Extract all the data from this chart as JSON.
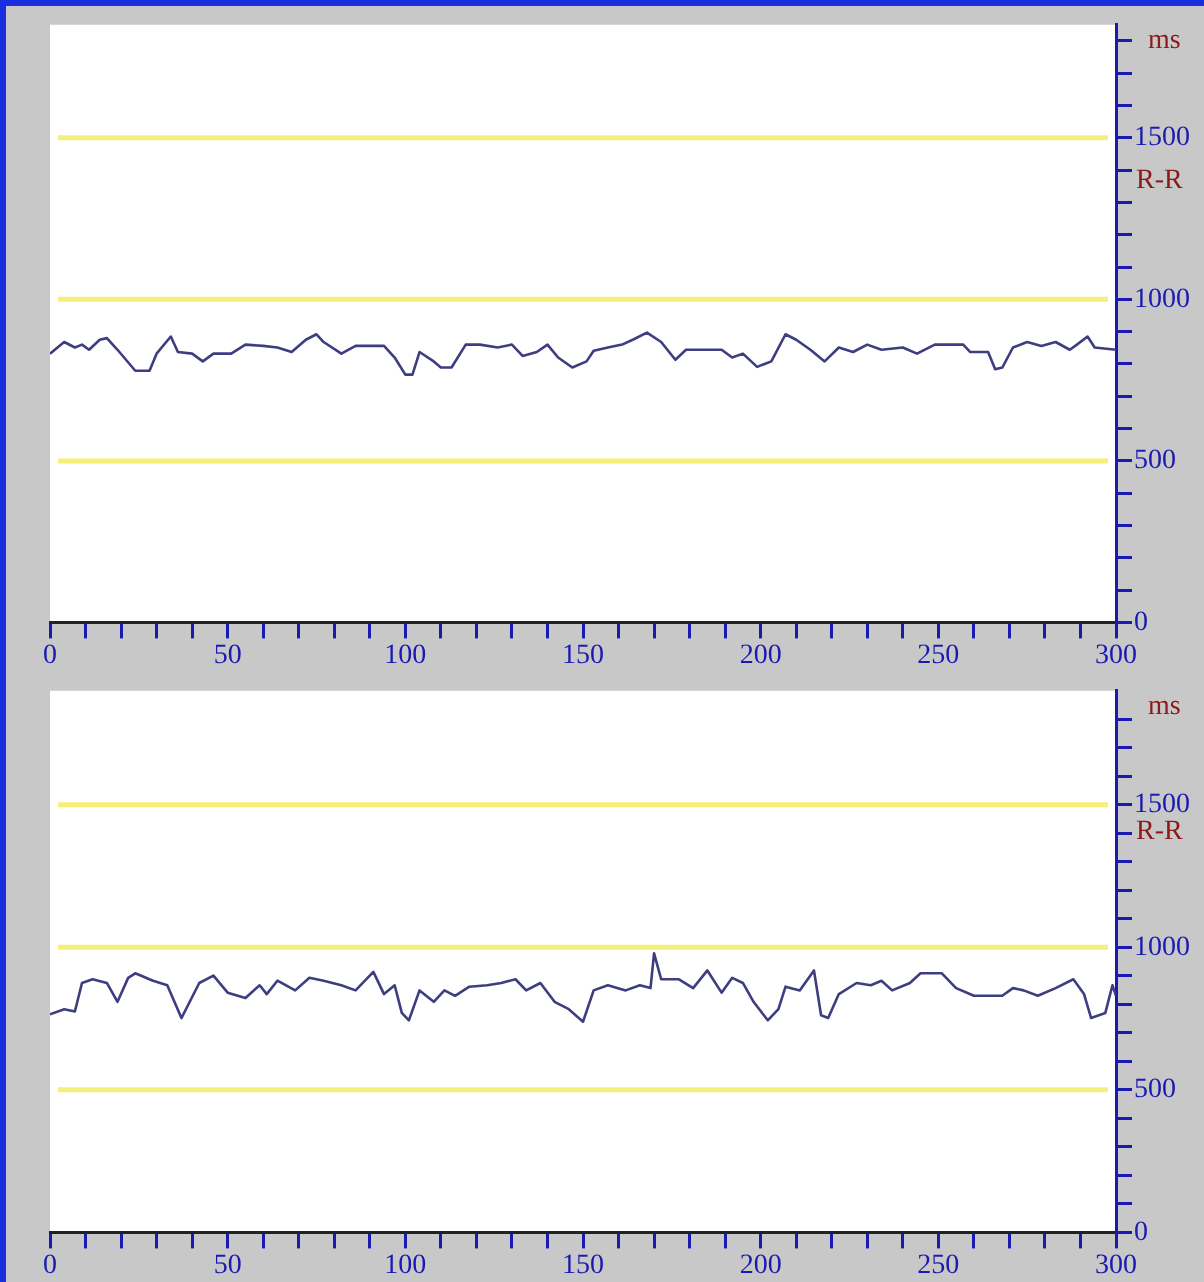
{
  "chart_data": [
    {
      "type": "line",
      "ylabel": "R-R",
      "annotations": [
        "ms"
      ],
      "legend": false,
      "grid": false,
      "x": [
        0,
        4,
        7,
        9,
        11,
        14,
        16,
        19,
        24,
        28,
        30,
        34,
        36,
        40,
        43,
        46,
        51,
        55,
        60,
        64,
        68,
        72,
        75,
        77,
        82,
        86,
        94,
        97,
        100,
        102,
        104,
        108,
        110,
        113,
        117,
        121,
        126,
        130,
        133,
        137,
        140,
        143,
        147,
        151,
        153,
        157,
        161,
        164,
        168,
        172,
        176,
        179,
        189,
        192,
        195,
        199,
        203,
        207,
        210,
        214,
        218,
        222,
        226,
        230,
        234,
        240,
        244,
        249,
        257,
        259,
        264,
        266,
        268,
        271,
        275,
        279,
        283,
        287,
        289,
        292,
        294,
        300
      ],
      "series": [
        {
          "color": "#3d3d80",
          "values": [
            832,
            868,
            851,
            860,
            844,
            875,
            880,
            844,
            779,
            779,
            832,
            885,
            837,
            832,
            808,
            832,
            832,
            860,
            856,
            851,
            837,
            875,
            892,
            868,
            832,
            856,
            856,
            820,
            767,
            767,
            837,
            808,
            789,
            789,
            860,
            860,
            851,
            860,
            825,
            837,
            860,
            820,
            789,
            808,
            841,
            851,
            860,
            875,
            897,
            868,
            813,
            844,
            844,
            820,
            832,
            791,
            808,
            892,
            875,
            844,
            808,
            851,
            837,
            860,
            844,
            851,
            832,
            860,
            860,
            837,
            837,
            784,
            789,
            851,
            868,
            856,
            868,
            844,
            860,
            885,
            851,
            844
          ]
        }
      ],
      "xlim": [
        0,
        300
      ],
      "xticks": [
        0,
        {
          "value": 10,
          "label": null
        },
        {
          "value": 20,
          "label": null
        },
        {
          "value": 30,
          "label": null
        },
        {
          "value": 40,
          "label": null
        },
        50,
        {
          "value": 60,
          "label": null
        },
        {
          "value": 70,
          "label": null
        },
        {
          "value": 80,
          "label": null
        },
        {
          "value": 90,
          "label": null
        },
        100,
        {
          "value": 110,
          "label": null
        },
        {
          "value": 120,
          "label": null
        },
        {
          "value": 130,
          "label": null
        },
        {
          "value": 140,
          "label": null
        },
        150,
        {
          "value": 160,
          "label": null
        },
        {
          "value": 170,
          "label": null
        },
        {
          "value": 180,
          "label": null
        },
        {
          "value": 190,
          "label": null
        },
        200,
        {
          "value": 210,
          "label": null
        },
        {
          "value": 220,
          "label": null
        },
        {
          "value": 230,
          "label": null
        },
        {
          "value": 240,
          "label": null
        },
        250,
        {
          "value": 260,
          "label": null
        },
        {
          "value": 270,
          "label": null
        },
        {
          "value": 280,
          "label": null
        },
        {
          "value": 290,
          "label": null
        },
        300
      ],
      "ylim": [
        0,
        1850
      ],
      "yticks": [
        0,
        {
          "value": 100,
          "label": null
        },
        {
          "value": 200,
          "label": null
        },
        {
          "value": 300,
          "label": null
        },
        {
          "value": 400,
          "label": null
        },
        500,
        {
          "value": 600,
          "label": null
        },
        {
          "value": 700,
          "label": null
        },
        {
          "value": 800,
          "label": null
        },
        {
          "value": 900,
          "label": null
        },
        1000,
        {
          "value": 1100,
          "label": null
        },
        {
          "value": 1200,
          "label": null
        },
        {
          "value": 1300,
          "label": null
        },
        {
          "value": 1400,
          "label": null
        },
        1500,
        {
          "value": 1600,
          "label": null
        },
        {
          "value": 1700,
          "label": null
        },
        {
          "value": 1800,
          "label": null
        }
      ],
      "ref_lines": [
        {
          "axis": "y",
          "value": 500,
          "color": "#f5f07a"
        },
        {
          "axis": "y",
          "value": 1000,
          "color": "#f5f07a"
        },
        {
          "axis": "y",
          "value": 1500,
          "color": "#f5f07a"
        }
      ]
    },
    {
      "type": "line",
      "ylabel": "R-R",
      "annotations": [
        "ms"
      ],
      "legend": false,
      "grid": false,
      "x": [
        0,
        4,
        7,
        9,
        12,
        16,
        19,
        22,
        24,
        29,
        33,
        37,
        42,
        46,
        50,
        55,
        59,
        61,
        64,
        69,
        73,
        77,
        82,
        86,
        91,
        94,
        97,
        99,
        101,
        104,
        108,
        111,
        114,
        118,
        123,
        127,
        131,
        134,
        138,
        142,
        146,
        150,
        153,
        157,
        162,
        166,
        169,
        170,
        172,
        177,
        181,
        185,
        189,
        192,
        195,
        198,
        202,
        205,
        207,
        211,
        215,
        217,
        219,
        222,
        227,
        231,
        234,
        237,
        242,
        245,
        251,
        255,
        260,
        268,
        271,
        274,
        278,
        283,
        288,
        291,
        293,
        297,
        299,
        300
      ],
      "series": [
        {
          "color": "#3d3d80",
          "values": [
            765,
            783,
            775,
            875,
            888,
            875,
            809,
            893,
            909,
            883,
            867,
            752,
            875,
            901,
            841,
            822,
            867,
            836,
            883,
            849,
            893,
            883,
            867,
            849,
            914,
            836,
            867,
            770,
            744,
            849,
            809,
            849,
            830,
            862,
            867,
            875,
            888,
            849,
            875,
            809,
            783,
            739,
            849,
            867,
            849,
            867,
            857,
            979,
            888,
            888,
            857,
            919,
            841,
            893,
            875,
            809,
            744,
            783,
            862,
            849,
            919,
            762,
            752,
            836,
            875,
            867,
            883,
            849,
            875,
            909,
            909,
            857,
            830,
            830,
            857,
            849,
            830,
            857,
            888,
            836,
            752,
            770,
            867,
            830
          ]
        }
      ],
      "xlim": [
        0,
        300
      ],
      "xticks": [
        0,
        {
          "value": 10,
          "label": null
        },
        {
          "value": 20,
          "label": null
        },
        {
          "value": 30,
          "label": null
        },
        {
          "value": 40,
          "label": null
        },
        50,
        {
          "value": 60,
          "label": null
        },
        {
          "value": 70,
          "label": null
        },
        {
          "value": 80,
          "label": null
        },
        {
          "value": 90,
          "label": null
        },
        100,
        {
          "value": 110,
          "label": null
        },
        {
          "value": 120,
          "label": null
        },
        {
          "value": 130,
          "label": null
        },
        {
          "value": 140,
          "label": null
        },
        150,
        {
          "value": 160,
          "label": null
        },
        {
          "value": 170,
          "label": null
        },
        {
          "value": 180,
          "label": null
        },
        {
          "value": 190,
          "label": null
        },
        200,
        {
          "value": 210,
          "label": null
        },
        {
          "value": 220,
          "label": null
        },
        {
          "value": 230,
          "label": null
        },
        {
          "value": 240,
          "label": null
        },
        250,
        {
          "value": 260,
          "label": null
        },
        {
          "value": 270,
          "label": null
        },
        {
          "value": 280,
          "label": null
        },
        {
          "value": 290,
          "label": null
        },
        300
      ],
      "ylim": [
        0,
        1900
      ],
      "yticks": [
        0,
        {
          "value": 100,
          "label": null
        },
        {
          "value": 200,
          "label": null
        },
        {
          "value": 300,
          "label": null
        },
        {
          "value": 400,
          "label": null
        },
        500,
        {
          "value": 600,
          "label": null
        },
        {
          "value": 700,
          "label": null
        },
        {
          "value": 800,
          "label": null
        },
        {
          "value": 900,
          "label": null
        },
        1000,
        {
          "value": 1100,
          "label": null
        },
        {
          "value": 1200,
          "label": null
        },
        {
          "value": 1300,
          "label": null
        },
        {
          "value": 1400,
          "label": null
        },
        1500,
        {
          "value": 1600,
          "label": null
        },
        {
          "value": 1700,
          "label": null
        },
        {
          "value": 1800,
          "label": null
        }
      ],
      "ref_lines": [
        {
          "axis": "y",
          "value": 500,
          "color": "#f5f07a"
        },
        {
          "axis": "y",
          "value": 1000,
          "color": "#f5f07a"
        },
        {
          "axis": "y",
          "value": 1500,
          "color": "#f5f07a"
        }
      ]
    }
  ]
}
